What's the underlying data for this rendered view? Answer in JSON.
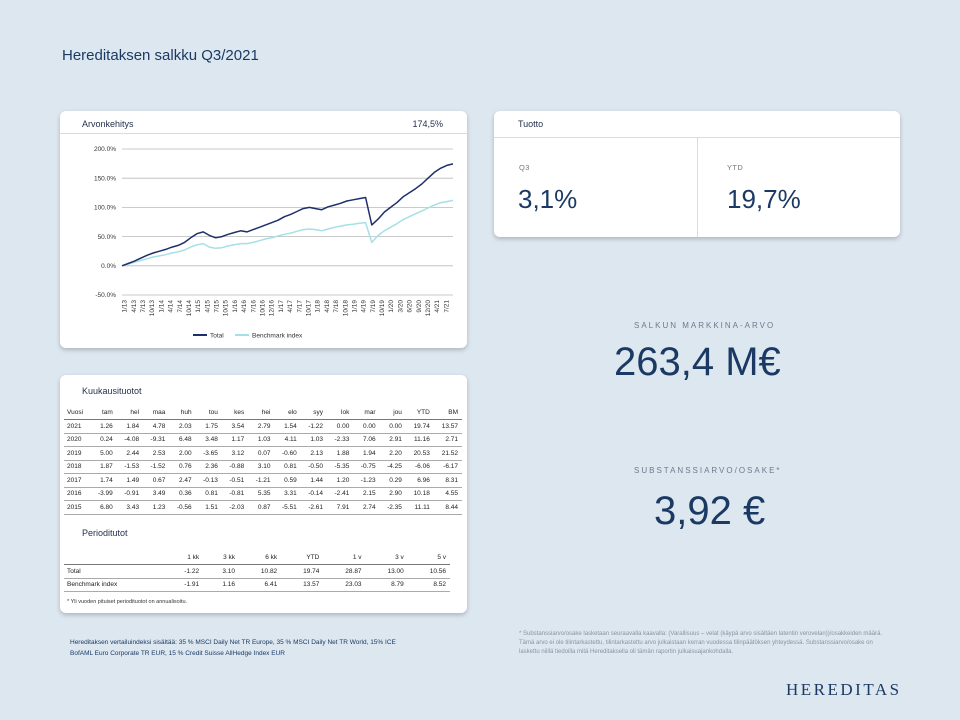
{
  "page_title": "Hereditaksen salkku Q3/2021",
  "colors": {
    "total": "#1e2f6b",
    "benchmark": "#a6e0e4",
    "accent": "#1b3a63",
    "background": "#dde7f0"
  },
  "chart_card": {
    "title": "Arvonkehitys",
    "headline_value": "174,5%",
    "chart_data": {
      "type": "line",
      "title": "Arvonkehitys",
      "ylim": [
        -50,
        200
      ],
      "y_ticks": [
        "200.0%",
        "150.0%",
        "100.0%",
        "50.0%",
        "0.0%",
        "-50.0%"
      ],
      "x_ticks": [
        "1/13",
        "4/13",
        "7/13",
        "10/13",
        "1/14",
        "4/14",
        "7/14",
        "10/14",
        "1/15",
        "4/15",
        "7/15",
        "10/15",
        "1/16",
        "4/16",
        "7/16",
        "10/16",
        "12/16",
        "1/17",
        "4/17",
        "7/17",
        "10/17",
        "1/18",
        "4/18",
        "7/18",
        "10/18",
        "1/19",
        "4/19",
        "7/19",
        "10/19",
        "1/20",
        "3/20",
        "6/20",
        "9/20",
        "12/20",
        "4/21",
        "7/21"
      ],
      "grid": true,
      "legend_position": "bottom",
      "series": [
        {
          "name": "Total",
          "values": [
            0,
            4,
            8,
            13,
            18,
            22,
            25,
            28,
            32,
            35,
            40,
            48,
            55,
            58,
            52,
            48,
            50,
            54,
            57,
            60,
            58,
            62,
            66,
            70,
            74,
            78,
            84,
            88,
            93,
            98,
            100,
            98,
            96,
            101,
            104,
            107,
            111,
            113,
            115,
            117,
            70,
            80,
            92,
            100,
            108,
            118,
            125,
            132,
            140,
            150,
            160,
            167,
            172,
            174.5
          ]
        },
        {
          "name": "Benchmark index",
          "values": [
            0,
            3,
            6,
            9,
            12,
            15,
            17,
            19,
            22,
            24,
            27,
            32,
            36,
            38,
            32,
            30,
            31,
            34,
            36,
            38,
            38,
            40,
            43,
            46,
            48,
            51,
            54,
            56,
            59,
            62,
            63,
            62,
            60,
            63,
            66,
            68,
            70,
            71,
            73,
            74,
            40,
            52,
            60,
            66,
            72,
            79,
            84,
            89,
            94,
            99,
            104,
            108,
            110,
            112
          ]
        }
      ]
    }
  },
  "tuotto_card": {
    "title": "Tuotto",
    "q3_label": "Q3",
    "q3_value": "3,1%",
    "ytd_label": "YTD",
    "ytd_value": "19,7%"
  },
  "market_value": {
    "label": "SALKUN MARKKINA-ARVO",
    "value": "263,4 M€"
  },
  "substance_value": {
    "label": "SUBSTANSSIARVO/OSAKE*",
    "value": "3,92 €"
  },
  "monthly_returns": {
    "title": "Kuukausituotot",
    "headers": [
      "Vuosi",
      "tam",
      "hel",
      "maa",
      "huh",
      "tou",
      "kes",
      "hei",
      "elo",
      "syy",
      "lok",
      "mar",
      "jou",
      "YTD",
      "BM"
    ],
    "rows": [
      [
        "2021",
        "1.26",
        "1.84",
        "4.78",
        "2.03",
        "1.75",
        "3.54",
        "2.79",
        "1.54",
        "-1.22",
        "0.00",
        "0.00",
        "0.00",
        "19.74",
        "13.57"
      ],
      [
        "2020",
        "0.24",
        "-4.08",
        "-9.31",
        "6.48",
        "3.48",
        "1.17",
        "1.03",
        "4.11",
        "1.03",
        "-2.33",
        "7.06",
        "2.91",
        "11.16",
        "2.71"
      ],
      [
        "2019",
        "5.00",
        "2.44",
        "2.53",
        "2.00",
        "-3.65",
        "3.12",
        "0.07",
        "-0.60",
        "2.13",
        "1.88",
        "1.94",
        "2.20",
        "20.53",
        "21.52"
      ],
      [
        "2018",
        "1.87",
        "-1.53",
        "-1.52",
        "0.76",
        "2.36",
        "-0.88",
        "3.10",
        "0.81",
        "-0.50",
        "-5.35",
        "-0.75",
        "-4.25",
        "-6.06",
        "-6.17"
      ],
      [
        "2017",
        "1.74",
        "1.49",
        "0.67",
        "2.47",
        "-0.13",
        "-0.51",
        "-1.21",
        "0.59",
        "1.44",
        "1.20",
        "-1.23",
        "0.29",
        "6.96",
        "8.31"
      ],
      [
        "2016",
        "-3.99",
        "-0.91",
        "3.49",
        "0.36",
        "0.81",
        "-0.81",
        "5.35",
        "3.31",
        "-0.14",
        "-2.41",
        "2.15",
        "2.90",
        "10.18",
        "4.55"
      ],
      [
        "2015",
        "6.80",
        "3.43",
        "1.23",
        "-0.56",
        "1.51",
        "-2.03",
        "0.87",
        "-5.51",
        "-2.61",
        "7.91",
        "2.74",
        "-2.35",
        "11.11",
        "8.44"
      ]
    ]
  },
  "period_returns": {
    "title": "Perioditutot",
    "headers": [
      "",
      "1 kk",
      "3 kk",
      "6 kk",
      "YTD",
      "1 v",
      "3 v",
      "5 v"
    ],
    "rows": [
      [
        "Total",
        "-1.22",
        "3.10",
        "10.82",
        "19.74",
        "28.87",
        "13.00",
        "10.56"
      ],
      [
        "Benchmark index",
        "-1.91",
        "1.16",
        "6.41",
        "13.57",
        "23.03",
        "8.79",
        "8.52"
      ]
    ],
    "footnote": "* Yli vuoden pituiset periodituotot on annualisoitu."
  },
  "footer_left": "Hereditaksen vertailuindeksi sisältää: 35 % MSCI Daily Net TR Europe, 35 % MSCI Daily Net TR World, 15% ICE BofAML Euro Corporate TR EUR, 15 % Credit Suisse AllHedge Index EUR",
  "footer_right": "* Substanssiarvo/osake lasketaan seuraavalla kaavalla: (Varallisuus – velat (käypä arvo sisältäen latentin verovelan))/osakkeiden määrä. Tämä arvo ei ole tilintarkastettu, tilintarkastettu arvo julkaistaan kerran vuodessa tilinpäätöksen yhteydessä. Substanssiarvo/osake on laskettu niillä tiedoilla mitä Hereditaksella oli tämän raportin julkaisuajankohdalla.",
  "logo": "HEREDITAS"
}
